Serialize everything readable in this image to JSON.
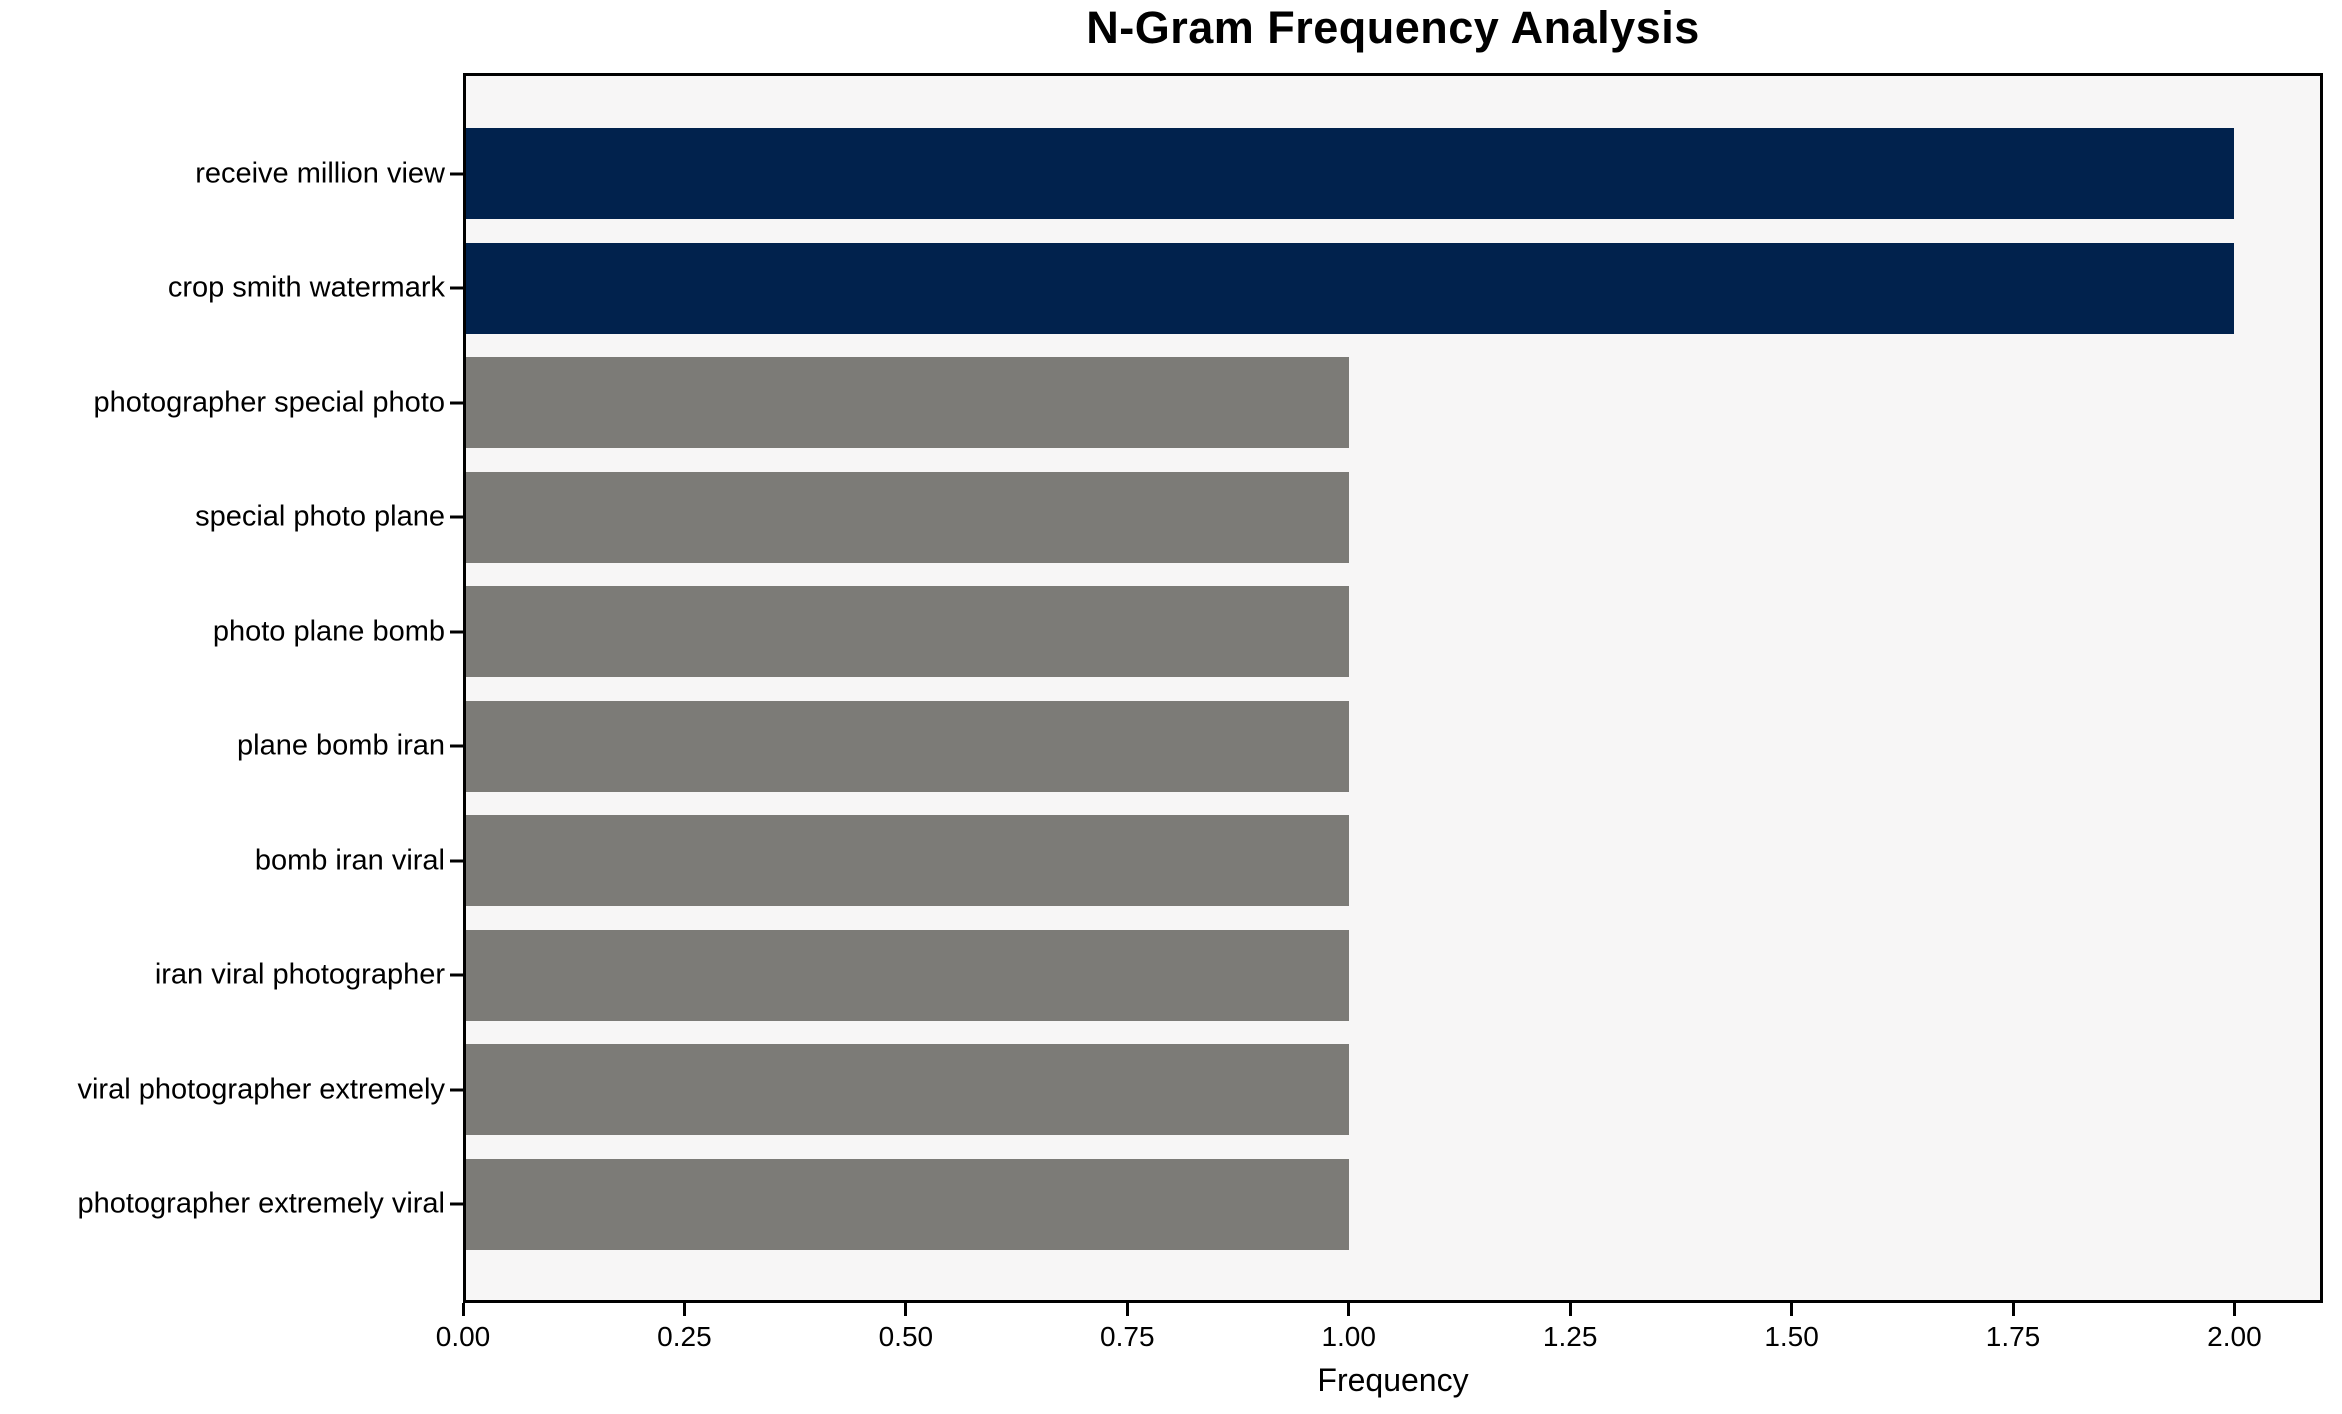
{
  "title": "N-Gram Frequency Analysis",
  "colors": {
    "highlight_bar": "#01224d",
    "default_bar": "#7c7b77",
    "plot_background": "#f7f6f6",
    "figure_background": "#ffffff",
    "spine": "#000000",
    "text": "#000000"
  },
  "chart_data": {
    "type": "bar",
    "orientation": "horizontal",
    "title": "N-Gram Frequency Analysis",
    "xlabel": "Frequency",
    "ylabel": "",
    "categories": [
      "receive million view",
      "crop smith watermark",
      "photographer special photo",
      "special photo plane",
      "photo plane bomb",
      "plane bomb iran",
      "bomb iran viral",
      "iran viral photographer",
      "viral photographer extremely",
      "photographer extremely viral"
    ],
    "values": [
      2,
      2,
      1,
      1,
      1,
      1,
      1,
      1,
      1,
      1
    ],
    "bar_colors": [
      "#01224d",
      "#01224d",
      "#7c7b77",
      "#7c7b77",
      "#7c7b77",
      "#7c7b77",
      "#7c7b77",
      "#7c7b77",
      "#7c7b77",
      "#7c7b77"
    ],
    "xlim": [
      0,
      2.1
    ],
    "x_tick_values": [
      0,
      0.25,
      0.5,
      0.75,
      1.0,
      1.25,
      1.5,
      1.75,
      2.0
    ],
    "x_tick_labels": [
      "0.00",
      "0.25",
      "0.50",
      "0.75",
      "1.00",
      "1.25",
      "1.50",
      "1.75",
      "2.00"
    ],
    "grid": false,
    "legend": null
  }
}
